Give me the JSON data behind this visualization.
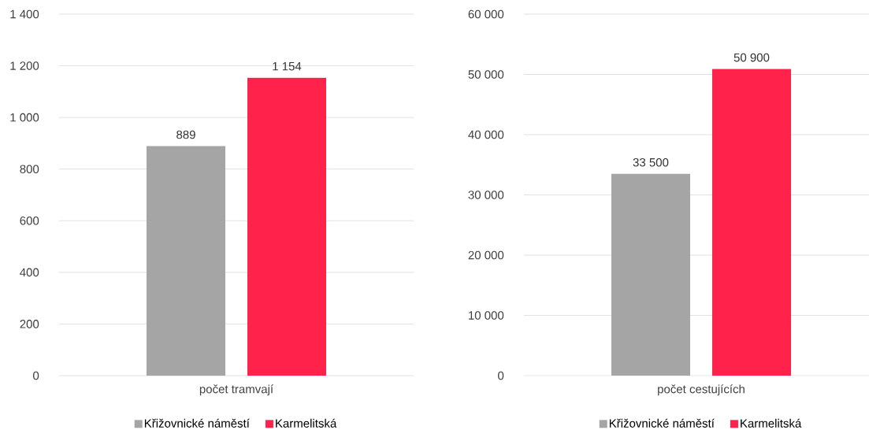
{
  "chart_data": [
    {
      "type": "bar",
      "categories": [
        "počet tramvají"
      ],
      "series": [
        {
          "name": "Křižovnické náměstí",
          "color": "#a5a5a5",
          "values": [
            889
          ],
          "value_labels": [
            "889"
          ]
        },
        {
          "name": "Karmelitská",
          "color": "#ff224b",
          "values": [
            1154
          ],
          "value_labels": [
            "1 154"
          ]
        }
      ],
      "ylim": [
        0,
        1400
      ],
      "yticks": [
        0,
        200,
        400,
        600,
        800,
        {
          "value": 1000,
          "label": "1 000"
        },
        {
          "value": 1200,
          "label": "1 200"
        },
        {
          "value": 1400,
          "label": "1 400"
        }
      ],
      "grid": "y",
      "legend": "bottom"
    },
    {
      "type": "bar",
      "categories": [
        "počet cestujících"
      ],
      "series": [
        {
          "name": "Křižovnické náměstí",
          "color": "#a5a5a5",
          "values": [
            33500
          ],
          "value_labels": [
            "33 500"
          ]
        },
        {
          "name": "Karmelitská",
          "color": "#ff224b",
          "values": [
            50900
          ],
          "value_labels": [
            "50 900"
          ]
        }
      ],
      "ylim": [
        0,
        60000
      ],
      "yticks": [
        0,
        {
          "value": 10000,
          "label": "10 000"
        },
        {
          "value": 20000,
          "label": "20 000"
        },
        {
          "value": 30000,
          "label": "30 000"
        },
        {
          "value": 40000,
          "label": "40 000"
        },
        {
          "value": 50000,
          "label": "50 000"
        },
        {
          "value": 60000,
          "label": "60 000"
        }
      ],
      "grid": "y",
      "legend": "bottom"
    }
  ]
}
